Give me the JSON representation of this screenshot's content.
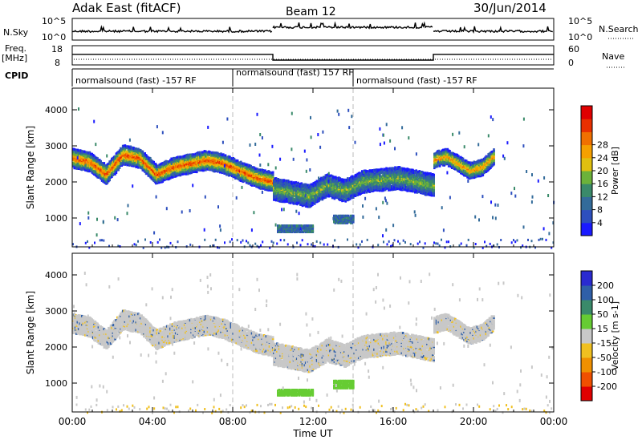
{
  "header": {
    "station": "Adak East (fitACF)",
    "beam": "Beam 12",
    "date": "30/Jun/2014"
  },
  "strip": {
    "nsky_label": "N.Sky",
    "nsky_ticks": [
      "10^5",
      "10^0"
    ],
    "nsearch_label": "N.Search",
    "nsearch_ticks": [
      "10^5",
      "10^0"
    ],
    "freq_label": "Freq.",
    "freq_unit": "[MHz]",
    "freq_ticks": [
      "18",
      "8"
    ],
    "nave_label": "Nave",
    "nave_ticks": [
      "60",
      "0"
    ],
    "cpid_label": "CPID",
    "cpid_segments": [
      {
        "start_h": 0,
        "end_h": 8,
        "label": "normalsound (fast)  -157  RF"
      },
      {
        "start_h": 8,
        "end_h": 14,
        "label": "normalsound (fast)  157  RF"
      },
      {
        "start_h": 14,
        "end_h": 24,
        "label": "normalsound (fast)  -157  RF"
      }
    ]
  },
  "chart_data": [
    {
      "type": "heatmap",
      "panel": "power",
      "ylabel": "Slant Range [km]",
      "ylim": [
        200,
        4600
      ],
      "yticks": [
        1000,
        2000,
        3000,
        4000
      ],
      "xlim_hours": [
        0,
        24
      ],
      "xticks_labels": [
        "00:00",
        "04:00",
        "08:00",
        "12:00",
        "16:00",
        "20:00",
        "00:00"
      ],
      "colorbar": {
        "label": "Power [dB]",
        "ticks": [
          "4",
          "8",
          "12",
          "16",
          "20",
          "24",
          "28"
        ],
        "colors": [
          "#1a1aff",
          "#2d4fbe",
          "#336b9a",
          "#3a8a6a",
          "#6cb23a",
          "#e0c010",
          "#f5a000",
          "#f07000",
          "#e83000",
          "#e00000"
        ]
      },
      "bands": [
        {
          "start_h": 0.0,
          "end_h": 10.0,
          "range_km": [
            2650,
            2550,
            2200,
            2750,
            2650,
            2200,
            2400,
            2500,
            2600,
            2500,
            2300,
            2100,
            2000
          ],
          "width_km": 260,
          "peak_db": 26
        },
        {
          "start_h": 10.0,
          "end_h": 18.0,
          "range_km": [
            1800,
            1700,
            1600,
            1900,
            1750,
            2000,
            2050,
            2100,
            2000,
            1900
          ],
          "width_km": 300,
          "peak_db": 14
        },
        {
          "start_h": 18.0,
          "end_h": 21.0,
          "range_km": [
            2600,
            2700,
            2500,
            2300,
            2400,
            2700
          ],
          "width_km": 220,
          "peak_db": 22
        }
      ]
    },
    {
      "type": "heatmap",
      "panel": "velocity",
      "ylabel": "Slant Range [km]",
      "ylim": [
        200,
        4600
      ],
      "yticks": [
        1000,
        2000,
        3000,
        4000
      ],
      "xlim_hours": [
        0,
        24
      ],
      "xlabel": "Time UT",
      "xticks_labels": [
        "00:00",
        "04:00",
        "08:00",
        "12:00",
        "16:00",
        "20:00",
        "00:00"
      ],
      "colorbar": {
        "label": "Velocity [m s-1]",
        "ticks": [
          "200",
          "100",
          "50",
          "15",
          "-15",
          "-50",
          "-100",
          "-200"
        ],
        "colors": [
          "#2a2ad0",
          "#2f5fa8",
          "#3a8a6a",
          "#66cc33",
          "#c8c8c8",
          "#f0c020",
          "#f09000",
          "#f05000",
          "#e00000"
        ]
      },
      "bands": [
        {
          "start_h": 0.0,
          "end_h": 10.0,
          "range_km": [
            2650,
            2550,
            2200,
            2750,
            2650,
            2200,
            2400,
            2500,
            2600,
            2500,
            2300,
            2100,
            2000
          ],
          "width_km": 260,
          "velocity": 0
        },
        {
          "start_h": 10.0,
          "end_h": 18.0,
          "range_km": [
            1800,
            1700,
            1600,
            1900,
            1750,
            2000,
            2050,
            2100,
            2000,
            1900
          ],
          "width_km": 300,
          "velocity": 0
        },
        {
          "start_h": 18.0,
          "end_h": 21.0,
          "range_km": [
            2600,
            2700,
            2500,
            2300,
            2400,
            2700
          ],
          "width_km": 220,
          "velocity": 0
        }
      ],
      "patches": [
        {
          "start_h": 10.2,
          "end_h": 12.0,
          "range_km": [
            650,
            800
          ],
          "velocity": 30
        },
        {
          "start_h": 13.0,
          "end_h": 14.0,
          "range_km": [
            850,
            1050
          ],
          "velocity": 30
        }
      ]
    }
  ],
  "freq_steps": [
    {
      "start_h": 0,
      "end_h": 10,
      "mhz": 13.5
    },
    {
      "start_h": 10,
      "end_h": 18,
      "mhz": 10.5
    },
    {
      "start_h": 18,
      "end_h": 24,
      "mhz": 13.5
    }
  ]
}
